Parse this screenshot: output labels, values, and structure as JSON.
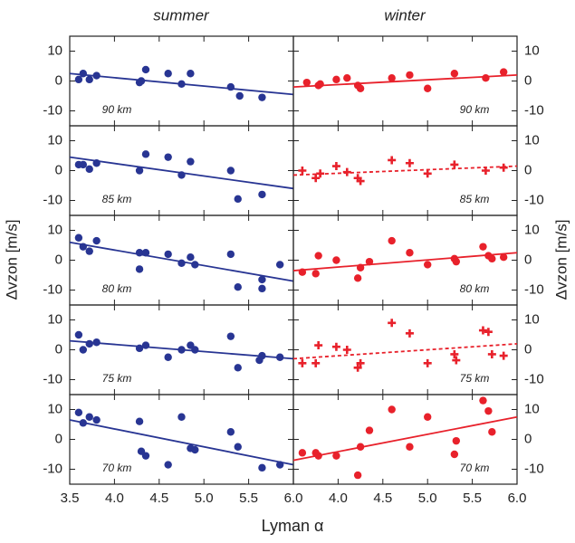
{
  "figure": {
    "columns": [
      "summer",
      "winter"
    ],
    "xlabel": "Lyman α",
    "ylabel": "Δvzon [m/s]",
    "xlim": [
      3.5,
      6.0
    ],
    "xticks": [
      3.5,
      {
        "value": 4,
        "label": "4.0"
      },
      4.5,
      {
        "value": 5,
        "label": "5.0"
      },
      5.5,
      {
        "value": 6,
        "label": "6.0"
      }
    ],
    "ylim": [
      -15,
      15
    ],
    "yticks": [
      -10,
      0,
      10
    ]
  },
  "chart_data": [
    {
      "type": "scatter",
      "label": "90 km",
      "color": "#283593",
      "marker": "circle",
      "x": [
        3.6,
        3.65,
        3.72,
        3.8,
        4.28,
        4.3,
        4.35,
        4.6,
        4.75,
        4.85,
        5.3,
        5.4,
        5.65
      ],
      "values": [
        0.5,
        2.5,
        0.5,
        1.8,
        -0.5,
        0,
        3.8,
        2.5,
        -1,
        2.5,
        -2,
        -5,
        -5.5
      ],
      "fit": {
        "x": [
          3.5,
          6.0
        ],
        "values": [
          2.5,
          -4.5
        ],
        "style": "solid"
      }
    },
    {
      "type": "scatter",
      "label": "85 km",
      "color": "#283593",
      "marker": "circle",
      "x": [
        3.6,
        3.65,
        3.72,
        3.8,
        4.28,
        4.35,
        4.6,
        4.75,
        4.85,
        5.3,
        5.38,
        5.65
      ],
      "values": [
        2,
        2,
        0.5,
        2.5,
        0,
        5.5,
        4.5,
        -1.5,
        3,
        0,
        -9.5,
        -8
      ],
      "fit": {
        "x": [
          3.5,
          6.0
        ],
        "values": [
          4.5,
          -6
        ],
        "style": "solid"
      }
    },
    {
      "type": "scatter",
      "label": "80 km",
      "color": "#283593",
      "marker": "circle",
      "x": [
        3.6,
        3.65,
        3.72,
        3.8,
        4.28,
        4.28,
        4.35,
        4.6,
        4.75,
        4.85,
        4.9,
        5.3,
        5.38,
        5.65,
        5.65,
        5.85
      ],
      "values": [
        7.5,
        4.5,
        3,
        6.5,
        2.5,
        -3,
        2.5,
        2,
        -1,
        1,
        -1.5,
        2,
        -9,
        -6.5,
        -9.5,
        -1.5
      ],
      "fit": {
        "x": [
          3.5,
          6.0
        ],
        "values": [
          6,
          -7
        ],
        "style": "solid"
      }
    },
    {
      "type": "scatter",
      "label": "75 km",
      "color": "#283593",
      "marker": "circle",
      "x": [
        3.6,
        3.65,
        3.72,
        3.8,
        4.28,
        4.35,
        4.6,
        4.75,
        4.85,
        4.9,
        5.3,
        5.38,
        5.62,
        5.65,
        5.85
      ],
      "values": [
        5,
        0,
        2,
        2.5,
        0.5,
        1.5,
        -2.5,
        0,
        1.5,
        0,
        4.5,
        -6,
        -3.5,
        -2,
        -2.5
      ],
      "fit": {
        "x": [
          3.5,
          6.0
        ],
        "values": [
          3,
          -3
        ],
        "style": "solid"
      }
    },
    {
      "type": "scatter",
      "label": "70 km",
      "color": "#283593",
      "marker": "circle",
      "x": [
        3.6,
        3.65,
        3.72,
        3.8,
        4.28,
        4.3,
        4.35,
        4.6,
        4.75,
        4.85,
        4.9,
        5.3,
        5.38,
        5.65,
        5.85
      ],
      "values": [
        9,
        5.5,
        7.5,
        6.5,
        6,
        -4,
        -5.5,
        -8.5,
        7.5,
        -3,
        -3.5,
        2.5,
        -2.5,
        -9.5,
        -8.5
      ],
      "fit": {
        "x": [
          3.5,
          6.0
        ],
        "values": [
          6.5,
          -8.5
        ],
        "style": "solid"
      }
    },
    {
      "type": "scatter",
      "label": "90 km",
      "color": "#e8212b",
      "marker": "circle",
      "x": [
        3.65,
        3.78,
        3.8,
        3.98,
        4.1,
        4.22,
        4.25,
        4.6,
        4.8,
        5.0,
        5.3,
        5.65,
        5.85
      ],
      "values": [
        -0.5,
        -1.5,
        -1,
        0.5,
        1,
        -1.5,
        -2.5,
        1,
        2,
        -2.5,
        2.5,
        1,
        3
      ],
      "fit": {
        "x": [
          3.5,
          6.0
        ],
        "values": [
          -2,
          2
        ],
        "style": "solid"
      }
    },
    {
      "type": "scatter",
      "label": "85 km",
      "color": "#e8212b",
      "marker": "plus",
      "x": [
        3.6,
        3.75,
        3.8,
        3.98,
        4.1,
        4.22,
        4.25,
        4.6,
        4.8,
        5.0,
        5.3,
        5.65,
        5.85
      ],
      "values": [
        0,
        -2.5,
        -1,
        1.5,
        -0.5,
        -2.5,
        -3.5,
        3.5,
        2.5,
        -1,
        2,
        0,
        1
      ],
      "fit": {
        "x": [
          3.5,
          6.0
        ],
        "values": [
          -1.5,
          1.5
        ],
        "style": "dashed"
      }
    },
    {
      "type": "scatter",
      "label": "80 km",
      "color": "#e8212b",
      "marker": "circle",
      "x": [
        3.6,
        3.75,
        3.78,
        3.98,
        4.22,
        4.25,
        4.35,
        4.6,
        4.8,
        5.0,
        5.3,
        5.32,
        5.62,
        5.68,
        5.72,
        5.85
      ],
      "values": [
        -4,
        -4.5,
        1.5,
        0,
        -6,
        -2.5,
        -0.5,
        6.5,
        2.5,
        -1.5,
        0.5,
        -0.5,
        4.5,
        1.5,
        0.5,
        1
      ],
      "fit": {
        "x": [
          3.5,
          6.0
        ],
        "values": [
          -3.5,
          2.5
        ],
        "style": "solid"
      }
    },
    {
      "type": "scatter",
      "label": "75 km",
      "color": "#e8212b",
      "marker": "plus",
      "x": [
        3.6,
        3.75,
        3.78,
        3.98,
        4.1,
        4.22,
        4.25,
        4.6,
        4.8,
        5.0,
        5.3,
        5.32,
        5.62,
        5.68,
        5.72,
        5.85
      ],
      "values": [
        -4.5,
        -4.5,
        1.5,
        1,
        0,
        -6,
        -4.5,
        9,
        5.5,
        -4.5,
        -1.5,
        -3.5,
        6.5,
        6,
        -1.5,
        -2
      ],
      "fit": {
        "x": [
          3.5,
          6.0
        ],
        "values": [
          -3,
          2
        ],
        "style": "dashed"
      }
    },
    {
      "type": "scatter",
      "label": "70 km",
      "color": "#e8212b",
      "marker": "circle",
      "x": [
        3.6,
        3.75,
        3.78,
        3.98,
        4.22,
        4.25,
        4.35,
        4.6,
        4.8,
        5.0,
        5.3,
        5.32,
        5.62,
        5.68,
        5.72
      ],
      "values": [
        -4.5,
        -4.5,
        -5.5,
        -5.5,
        -12,
        -2.5,
        3,
        10,
        -2.5,
        7.5,
        -5,
        -0.5,
        13,
        9.5,
        2.5
      ],
      "fit": {
        "x": [
          3.5,
          6.0
        ],
        "values": [
          -7,
          7.5
        ],
        "style": "solid"
      }
    }
  ]
}
